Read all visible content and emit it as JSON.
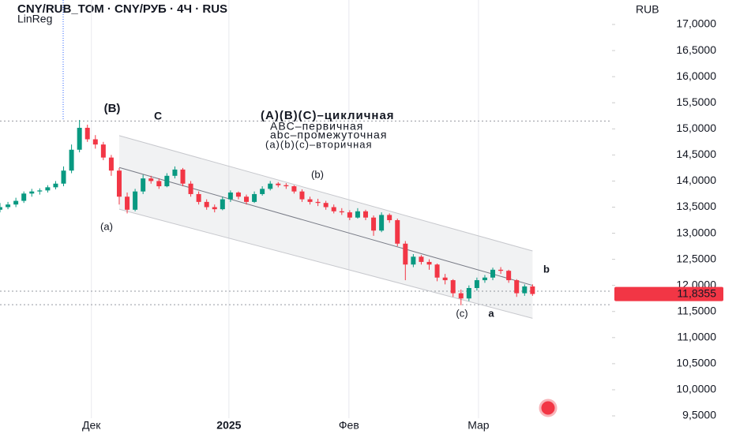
{
  "chart_data": {
    "type": "candlestick",
    "title": "CNY/RUB_TOM · CNY/РУБ · 4Ч · RUS",
    "indicator": "LinReg",
    "currency": "RUB",
    "up_color": "#089981",
    "down_color": "#f23645",
    "ylim": [
      9.455,
      17.469
    ],
    "xlim": [
      0,
      77
    ],
    "yticks": [
      {
        "value": 9.5,
        "label": "9,5000"
      },
      {
        "value": 10,
        "label": "10,0000"
      },
      {
        "value": 10.5,
        "label": "10,5000"
      },
      {
        "value": 11,
        "label": "11,0000"
      },
      {
        "value": 11.5,
        "label": "11,5000"
      },
      {
        "value": 12,
        "label": "12,0000"
      },
      {
        "value": 12.5,
        "label": "12,5000"
      },
      {
        "value": 13,
        "label": "13,0000"
      },
      {
        "value": 13.5,
        "label": "13,5000"
      },
      {
        "value": 14,
        "label": "14,0000"
      },
      {
        "value": 14.5,
        "label": "14,5000"
      },
      {
        "value": 15,
        "label": "15,0000"
      },
      {
        "value": 15.5,
        "label": "15,5000"
      },
      {
        "value": 16,
        "label": "16,0000"
      },
      {
        "value": 16.5,
        "label": "16,5000"
      },
      {
        "value": 17,
        "label": "17,0000"
      }
    ],
    "xticks": [
      {
        "value": 11.5,
        "label": "Дек"
      },
      {
        "value": 28.8,
        "label": "2025"
      },
      {
        "value": 43.9,
        "label": "Фев"
      },
      {
        "value": 60.2,
        "label": "Мар"
      }
    ],
    "last_price": {
      "value": 11.8355,
      "label": "11,8355"
    },
    "levels": [
      15.15,
      11.89,
      11.63
    ],
    "linreg": {
      "start": 15,
      "end": 67,
      "center": [
        14.26,
        12.0
      ],
      "upper": [
        14.87,
        12.66
      ],
      "lower": [
        13.46,
        11.37
      ]
    },
    "candles": [
      [
        13.45,
        13.58,
        13.4,
        13.5
      ],
      [
        13.5,
        13.6,
        13.46,
        13.55
      ],
      [
        13.55,
        13.68,
        13.5,
        13.62
      ],
      [
        13.62,
        13.8,
        13.58,
        13.76
      ],
      [
        13.76,
        13.85,
        13.7,
        13.8
      ],
      [
        13.8,
        13.86,
        13.74,
        13.82
      ],
      [
        13.82,
        13.92,
        13.78,
        13.88
      ],
      [
        13.88,
        14.0,
        13.84,
        13.95
      ],
      [
        13.95,
        14.28,
        13.9,
        14.2
      ],
      [
        14.2,
        14.7,
        14.15,
        14.6
      ],
      [
        14.6,
        15.17,
        14.55,
        15.02
      ],
      [
        15.02,
        15.08,
        14.75,
        14.8
      ],
      [
        14.8,
        14.88,
        14.62,
        14.7
      ],
      [
        14.7,
        14.75,
        14.4,
        14.45
      ],
      [
        14.45,
        14.5,
        14.1,
        14.2
      ],
      [
        14.2,
        14.25,
        13.55,
        13.7
      ],
      [
        13.7,
        13.78,
        13.38,
        13.45
      ],
      [
        13.45,
        13.85,
        13.42,
        13.8
      ],
      [
        13.8,
        14.12,
        13.75,
        14.05
      ],
      [
        14.05,
        14.1,
        13.95,
        14.0
      ],
      [
        14.0,
        14.05,
        13.85,
        13.9
      ],
      [
        13.9,
        14.15,
        13.88,
        14.1
      ],
      [
        14.1,
        14.28,
        14.05,
        14.22
      ],
      [
        14.22,
        14.25,
        13.9,
        13.95
      ],
      [
        13.95,
        14.0,
        13.7,
        13.75
      ],
      [
        13.75,
        13.8,
        13.55,
        13.6
      ],
      [
        13.6,
        13.65,
        13.45,
        13.5
      ],
      [
        13.5,
        13.55,
        13.4,
        13.46
      ],
      [
        13.46,
        13.7,
        13.44,
        13.65
      ],
      [
        13.65,
        13.82,
        13.6,
        13.78
      ],
      [
        13.78,
        13.8,
        13.65,
        13.7
      ],
      [
        13.7,
        13.74,
        13.55,
        13.6
      ],
      [
        13.6,
        13.8,
        13.58,
        13.75
      ],
      [
        13.75,
        13.9,
        13.72,
        13.85
      ],
      [
        13.85,
        14.0,
        13.82,
        13.95
      ],
      [
        13.95,
        13.98,
        13.88,
        13.92
      ],
      [
        13.92,
        13.96,
        13.85,
        13.9
      ],
      [
        13.9,
        13.92,
        13.76,
        13.8
      ],
      [
        13.8,
        13.84,
        13.6,
        13.65
      ],
      [
        13.65,
        13.7,
        13.55,
        13.6
      ],
      [
        13.6,
        13.66,
        13.52,
        13.58
      ],
      [
        13.58,
        13.62,
        13.45,
        13.5
      ],
      [
        13.5,
        13.55,
        13.38,
        13.42
      ],
      [
        13.42,
        13.48,
        13.35,
        13.4
      ],
      [
        13.4,
        13.44,
        13.25,
        13.3
      ],
      [
        13.3,
        13.48,
        13.28,
        13.42
      ],
      [
        13.42,
        13.45,
        13.25,
        13.3
      ],
      [
        13.3,
        13.34,
        12.95,
        13.05
      ],
      [
        13.05,
        13.4,
        13.02,
        13.35
      ],
      [
        13.35,
        13.38,
        13.2,
        13.25
      ],
      [
        13.25,
        13.28,
        12.75,
        12.8
      ],
      [
        12.8,
        12.85,
        12.1,
        12.4
      ],
      [
        12.4,
        12.6,
        12.35,
        12.55
      ],
      [
        12.55,
        12.58,
        12.4,
        12.45
      ],
      [
        12.45,
        12.5,
        12.3,
        12.4
      ],
      [
        12.4,
        12.42,
        12.08,
        12.15
      ],
      [
        12.15,
        12.22,
        12.02,
        12.1
      ],
      [
        12.1,
        12.12,
        11.78,
        11.85
      ],
      [
        11.85,
        11.92,
        11.62,
        11.75
      ],
      [
        11.75,
        12.0,
        11.7,
        11.95
      ],
      [
        11.95,
        12.15,
        11.9,
        12.1
      ],
      [
        12.1,
        12.2,
        12.05,
        12.15
      ],
      [
        12.15,
        12.34,
        12.1,
        12.3
      ],
      [
        12.3,
        12.35,
        12.22,
        12.28
      ],
      [
        12.28,
        12.3,
        12.05,
        12.1
      ],
      [
        12.1,
        12.12,
        11.78,
        11.85
      ],
      [
        11.85,
        12.02,
        11.8,
        11.98
      ],
      [
        11.98,
        12.02,
        11.8,
        11.8355
      ]
    ],
    "annotations": [
      "(B)",
      "C",
      "(a)",
      "(b)",
      "(c)",
      "a",
      "b"
    ],
    "legend_lines": [
      "(A)(B)(C)–цикличная",
      "ABC–первичная",
      "abc–промежуточная",
      "(a)(b)(c)–вторичная"
    ]
  }
}
